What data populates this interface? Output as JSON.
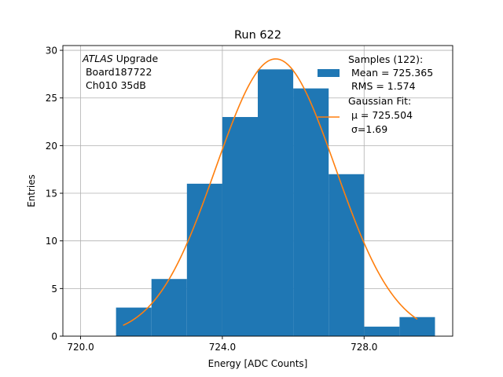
{
  "chart_data": {
    "type": "bar",
    "title": "Run 622",
    "xlabel": "Energy [ADC Counts]",
    "ylabel": "Entries",
    "xlim": [
      719.5,
      730.5
    ],
    "ylim": [
      0,
      30.5
    ],
    "xticks": [
      720,
      724,
      728
    ],
    "xtick_labels": [
      "720.0",
      "724.0",
      "728.0"
    ],
    "yticks": [
      0,
      5,
      10,
      15,
      20,
      25,
      30
    ],
    "ytick_labels": [
      "0",
      "5",
      "10",
      "15",
      "20",
      "25",
      "30"
    ],
    "grid": true,
    "legend_position": "top-right",
    "annotation": {
      "italic_prefix": "ATLAS",
      "line1_rest": " Upgrade",
      "line2": " Board187722",
      "line3": " Ch010 35dB"
    },
    "histogram": {
      "name_lines": [
        "Samples (122):",
        " Mean = 725.365",
        " RMS = 1.574"
      ],
      "color": "#1f77b4",
      "bins": [
        {
          "x0": 721,
          "x1": 722,
          "count": 3
        },
        {
          "x0": 722,
          "x1": 723,
          "count": 6
        },
        {
          "x0": 723,
          "x1": 724,
          "count": 16
        },
        {
          "x0": 724,
          "x1": 725,
          "count": 23
        },
        {
          "x0": 725,
          "x1": 726,
          "count": 28
        },
        {
          "x0": 726,
          "x1": 727,
          "count": 26
        },
        {
          "x0": 727,
          "x1": 728,
          "count": 17
        },
        {
          "x0": 728,
          "x1": 729,
          "count": 1
        },
        {
          "x0": 729,
          "x1": 730,
          "count": 2
        }
      ]
    },
    "fit": {
      "name_lines": [
        "Gaussian Fit:",
        " μ = 725.504",
        " σ=1.69"
      ],
      "color": "#ff7f0e",
      "mu": 725.504,
      "sigma": 1.69,
      "amplitude": 29.1,
      "x_range": [
        721.2,
        729.5
      ]
    }
  }
}
